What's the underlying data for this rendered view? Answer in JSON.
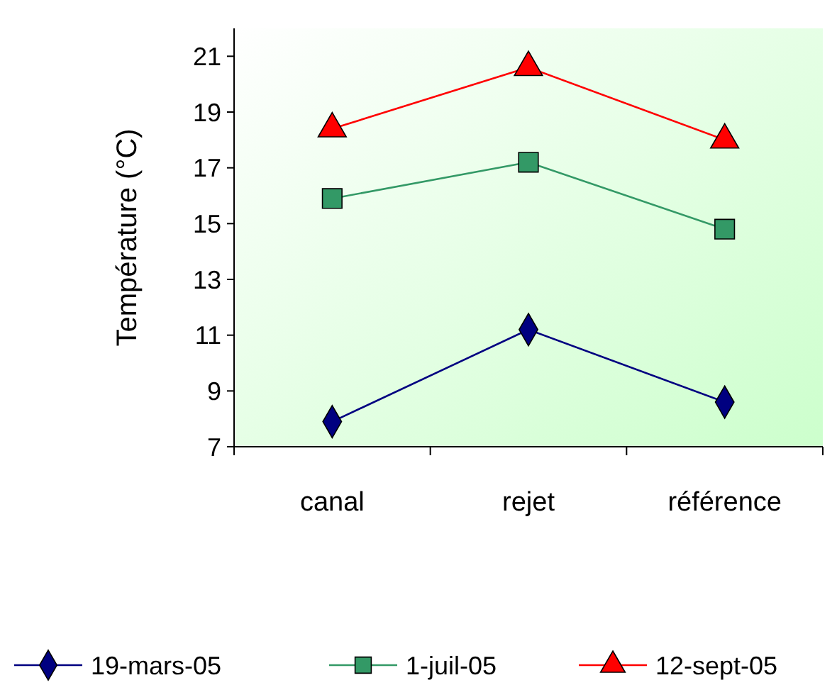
{
  "chart_data": {
    "type": "line",
    "ylabel": "Température (°C)",
    "categories": [
      "canal",
      "rejet",
      "référence"
    ],
    "series": [
      {
        "name": "19-mars-05",
        "color": "#000080",
        "marker": "diamond",
        "values": [
          7.9,
          11.2,
          8.6
        ]
      },
      {
        "name": "1-juil-05",
        "color": "#339966",
        "marker": "square",
        "values": [
          15.9,
          17.2,
          14.8
        ]
      },
      {
        "name": "12-sept-05",
        "color": "#ff0000",
        "marker": "triangle",
        "values": [
          18.4,
          20.6,
          18.0
        ]
      }
    ],
    "ylim": [
      7,
      22
    ],
    "yticks": [
      7,
      9,
      11,
      13,
      15,
      17,
      19,
      21
    ],
    "grid": false,
    "legend": "bottom"
  }
}
